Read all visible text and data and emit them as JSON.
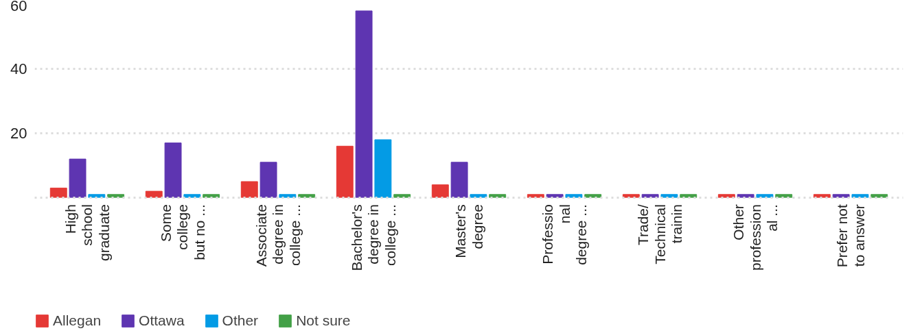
{
  "chart_data": {
    "type": "bar",
    "categories": [
      "High\nschool\ngraduate",
      "Some\ncollege\nbut no ...",
      "Associate\ndegree in\ncollege ...",
      "Bachelor's\ndegree in\ncollege ...",
      "Master's\ndegree",
      "Professio\nnal\ndegree ...",
      "Trade/\nTechnical\ntrainin",
      "Other\nprofession\nal ...",
      "Prefer not\nto answer"
    ],
    "series": [
      {
        "name": "Allegan",
        "color": "#e53935",
        "values": [
          3,
          2,
          5,
          16,
          4,
          1,
          1,
          1,
          1
        ]
      },
      {
        "name": "Ottawa",
        "color": "#5e35b1",
        "values": [
          12,
          17,
          11,
          58,
          11,
          1,
          1,
          1,
          1
        ]
      },
      {
        "name": "Other",
        "color": "#039be5",
        "values": [
          1,
          1,
          1,
          18,
          1,
          1,
          1,
          1,
          1
        ]
      },
      {
        "name": "Not sure",
        "color": "#43a047",
        "values": [
          1,
          1,
          1,
          1,
          1,
          1,
          1,
          1,
          1
        ]
      }
    ],
    "ylim": [
      0,
      60
    ],
    "yticks": [
      {
        "value": 0,
        "label": null
      },
      20,
      40,
      60
    ],
    "grid": "y",
    "legend": "bottom"
  }
}
